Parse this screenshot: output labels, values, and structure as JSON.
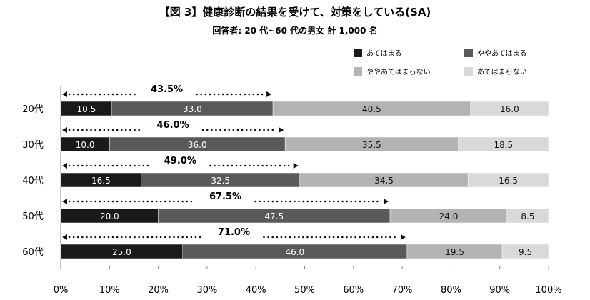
{
  "chart_data": {
    "type": "bar",
    "orientation": "horizontal",
    "stacked": true,
    "title": "【図 3】健康診断の結果を受けて、対策をしている(SA)",
    "subtitle": "回答者: 20 代~60 代の男女 計 1,000 名",
    "categories": [
      "20代",
      "30代",
      "40代",
      "50代",
      "60代"
    ],
    "series": [
      {
        "name": "あてはまる",
        "color": "#1a1a1a",
        "values": [
          10.5,
          10.0,
          16.5,
          20.0,
          25.0
        ]
      },
      {
        "name": "ややあてはまる",
        "color": "#595959",
        "values": [
          33.0,
          36.0,
          32.5,
          47.5,
          46.0
        ]
      },
      {
        "name": "ややあてはまらない",
        "color": "#b3b3b3",
        "values": [
          40.5,
          35.5,
          34.5,
          24.0,
          19.5
        ]
      },
      {
        "name": "あてはまらない",
        "color": "#d9d9d9",
        "values": [
          16.0,
          18.5,
          16.5,
          8.5,
          9.5
        ]
      }
    ],
    "value_labels": [
      [
        "10.5",
        "33.0",
        "40.5",
        "16.0"
      ],
      [
        "10.0",
        "36.0",
        "35.5",
        "18.5"
      ],
      [
        "16.5",
        "32.5",
        "34.5",
        "16.5"
      ],
      [
        "20.0",
        "47.5",
        "24.0",
        "8.5"
      ],
      [
        "25.0",
        "46.0",
        "19.5",
        "9.5"
      ]
    ],
    "annotations": [
      {
        "category": "20代",
        "label": "43.5%",
        "value": 43.5
      },
      {
        "category": "30代",
        "label": "46.0%",
        "value": 46.0
      },
      {
        "category": "40代",
        "label": "49.0%",
        "value": 49.0
      },
      {
        "category": "50代",
        "label": "67.5%",
        "value": 67.5
      },
      {
        "category": "60代",
        "label": "71.0%",
        "value": 71.0
      }
    ],
    "xlim": [
      0,
      100
    ],
    "xticks": [
      0,
      10,
      20,
      30,
      40,
      50,
      60,
      70,
      80,
      90,
      100
    ],
    "xtick_labels": [
      "0%",
      "10%",
      "20%",
      "30%",
      "40%",
      "50%",
      "60%",
      "70%",
      "80%",
      "90%",
      "100%"
    ],
    "xlabel": "",
    "ylabel": "",
    "grid": false,
    "legend_position": "top-right"
  }
}
